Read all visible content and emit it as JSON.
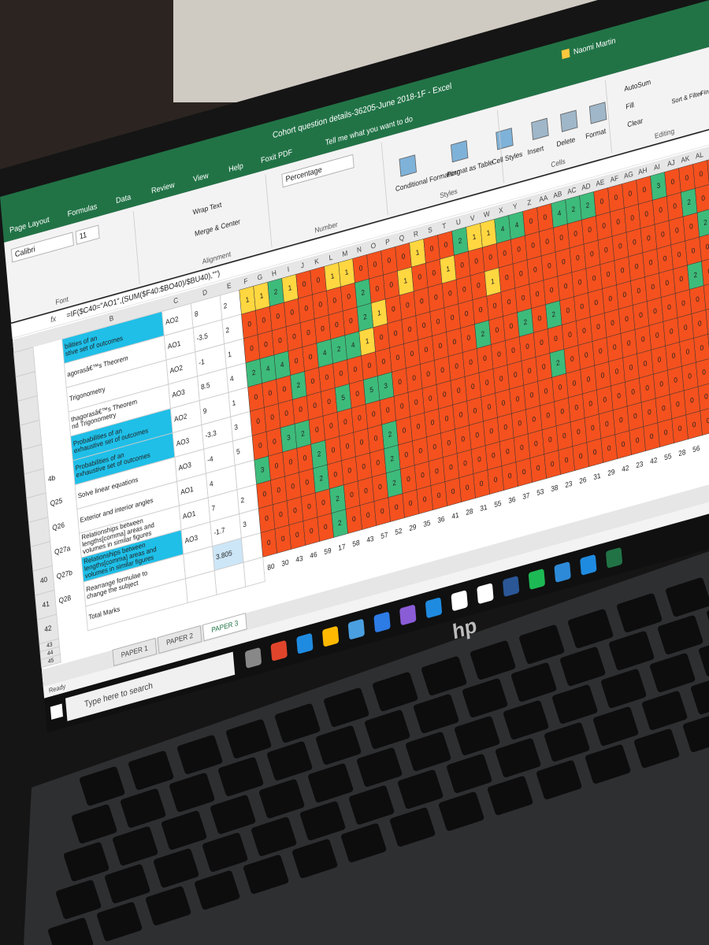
{
  "window": {
    "title": "Cohort question details-36205-June 2018-1F  -  Excel",
    "user": "Naomi Martin"
  },
  "tabs": [
    "Page Layout",
    "Formulas",
    "Data",
    "Review",
    "View",
    "Help",
    "Foxit PDF"
  ],
  "tell_me": "Tell me what you want to do",
  "ribbon": {
    "font": "Calibri",
    "size": "11",
    "number_format": "Percentage",
    "commands": [
      "Wrap Text",
      "Merge & Center",
      "Conditional Formatting",
      "Format as Table",
      "Cell Styles",
      "Insert",
      "Delete",
      "Format",
      "AutoSum",
      "Fill",
      "Clear",
      "Sort & Filter",
      "Find & Select"
    ],
    "groups": [
      "Font",
      "Alignment",
      "Number",
      "Styles",
      "Cells",
      "Editing"
    ]
  },
  "formula": {
    "fx": "fx",
    "text": "=IF($C40=\"AO1\",(SUM($F40:$BO40)/$BU40),\"\")"
  },
  "columns": [
    "B",
    "C",
    "D",
    "E",
    "F",
    "G",
    "H",
    "I",
    "J",
    "K",
    "L",
    "M",
    "N",
    "O",
    "P",
    "Q",
    "R",
    "S",
    "T",
    "U",
    "V",
    "W",
    "X",
    "Y",
    "Z",
    "AA",
    "AB",
    "AC",
    "AD",
    "AE",
    "AF",
    "AG",
    "AH",
    "AI",
    "AJ",
    "AK",
    "AL",
    "AM"
  ],
  "cell_colors": {
    "zero": "#f4511e",
    "one": "#ffd740",
    "more": "#3dbb7a"
  },
  "rows": [
    {
      "desc": [
        "bilities of an",
        "stive set of outcomes"
      ],
      "highlight": true,
      "ao": "AO2",
      "d": 8,
      "e": 2,
      "cells": [
        1,
        1,
        2,
        1,
        0,
        0,
        1,
        1,
        0,
        0,
        0,
        0,
        1,
        0,
        0,
        2,
        1,
        1,
        4,
        4,
        0,
        0,
        4,
        2,
        2,
        0,
        0,
        0,
        0,
        3,
        0,
        0,
        0,
        0
      ]
    },
    {
      "desc": [
        "agorasâ€™s Theorem"
      ],
      "ao": "AO1",
      "d": -3.5,
      "e": 2,
      "cells": [
        0,
        0,
        0,
        0,
        0,
        0,
        0,
        0,
        2,
        0,
        0,
        1,
        0,
        0,
        1,
        0,
        0,
        0,
        0,
        0,
        0,
        0,
        0,
        0,
        0,
        0,
        0,
        0,
        0,
        0,
        0,
        2,
        0,
        0
      ]
    },
    {
      "desc": [
        "Trigonometry"
      ],
      "ao": "AO2",
      "d": -1,
      "e": 1,
      "cells": [
        0,
        0,
        0,
        0,
        0,
        0,
        0,
        0,
        2,
        1,
        0,
        0,
        0,
        0,
        0,
        0,
        0,
        1,
        0,
        0,
        0,
        0,
        0,
        0,
        0,
        0,
        0,
        0,
        0,
        0,
        0,
        0,
        2,
        0
      ]
    },
    {
      "desc": [
        "thagorasâ€™s Theorem",
        "nd Trigonometry"
      ],
      "ao": "AO3",
      "d": 8.5,
      "e": 4,
      "cells": [
        2,
        4,
        4,
        0,
        0,
        4,
        2,
        4,
        1,
        0,
        0,
        0,
        0,
        0,
        0,
        0,
        0,
        0,
        0,
        0,
        0,
        0,
        0,
        0,
        0,
        0,
        0,
        0,
        0,
        0,
        0,
        0,
        0,
        0
      ]
    },
    {
      "desc": [
        "Probabilities of an",
        "exhaustive set of outcomes"
      ],
      "highlight": true,
      "ao": "AO2",
      "d": 9,
      "e": 1,
      "cells": [
        0,
        0,
        0,
        2,
        0,
        0,
        0,
        0,
        0,
        0,
        0,
        0,
        0,
        0,
        0,
        0,
        2,
        0,
        0,
        2,
        0,
        2,
        0,
        0,
        0,
        0,
        0,
        0,
        0,
        0,
        0,
        2,
        0,
        1
      ]
    },
    {
      "q": "4b",
      "desc": [
        "Probabilities of an",
        "exhaustive set of outcomes"
      ],
      "highlight": true,
      "ao": "AO3",
      "d": -3.3,
      "e": 3,
      "cells": [
        0,
        0,
        0,
        0,
        0,
        0,
        5,
        0,
        5,
        3,
        0,
        0,
        0,
        0,
        0,
        0,
        0,
        0,
        0,
        0,
        0,
        0,
        0,
        0,
        0,
        0,
        0,
        0,
        0,
        0,
        0,
        0,
        0,
        0
      ]
    },
    {
      "q": "Q25",
      "desc": [
        "Solve linear equations"
      ],
      "ao": "AO3",
      "d": -4,
      "e": 5,
      "cells": [
        0,
        0,
        3,
        2,
        0,
        0,
        0,
        0,
        0,
        0,
        0,
        0,
        0,
        0,
        0,
        0,
        0,
        0,
        0,
        0,
        0,
        2,
        0,
        0,
        0,
        0,
        0,
        0,
        0,
        0,
        0,
        0,
        0,
        0
      ]
    },
    {
      "q": "Q26",
      "desc": [
        "Exterior and interior angles"
      ],
      "ao": "AO1",
      "d": 4,
      "cells": [
        3,
        0,
        0,
        0,
        2,
        0,
        0,
        0,
        0,
        2,
        0,
        0,
        0,
        0,
        0,
        0,
        0,
        0,
        0,
        0,
        0,
        0,
        0,
        0,
        0,
        0,
        0,
        0,
        0,
        0,
        0,
        0,
        0,
        0
      ]
    },
    {
      "q": "Q27a",
      "desc": [
        "Relationships between",
        "lengths[comma] areas and",
        "volumes in similar figures"
      ],
      "ao": "AO1",
      "d": 7,
      "e": 2,
      "cells": [
        0,
        0,
        0,
        0,
        2,
        0,
        0,
        0,
        0,
        2,
        0,
        0,
        0,
        0,
        0,
        0,
        0,
        0,
        0,
        0,
        0,
        0,
        0,
        0,
        0,
        0,
        0,
        0,
        0,
        0,
        0,
        0,
        0,
        0
      ]
    },
    {
      "row": "40",
      "q": "Q27b",
      "desc": [
        "Relationships between",
        "lengths[comma] areas and",
        "volumes in similar figures"
      ],
      "highlight": true,
      "ao": "AO3",
      "d": -1.7,
      "e": 3,
      "cells": [
        0,
        0,
        0,
        0,
        0,
        2,
        0,
        0,
        0,
        2,
        0,
        0,
        0,
        0,
        0,
        0,
        0,
        0,
        0,
        0,
        0,
        0,
        0,
        0,
        0,
        0,
        0,
        0,
        0,
        0,
        0,
        0,
        0,
        0
      ]
    },
    {
      "row": "41",
      "q": "Q28",
      "desc": [
        "Rearrange formulae to",
        "change the subject"
      ],
      "d": 3.805,
      "cells": [
        0,
        0,
        0,
        0,
        0,
        2,
        0,
        0,
        0,
        0,
        0,
        0,
        0,
        0,
        0,
        0,
        0,
        0,
        0,
        0,
        0,
        0,
        0,
        0,
        0,
        0,
        0,
        0,
        0,
        0,
        0,
        0,
        0,
        0
      ]
    },
    {
      "row": "42",
      "desc": [
        "Total Marks"
      ],
      "totals": [
        80,
        30,
        43,
        46,
        59,
        17,
        58,
        43,
        57,
        52,
        29,
        35,
        36,
        41,
        28,
        31,
        55,
        36,
        37,
        53,
        38,
        23,
        26,
        31,
        29,
        42,
        23,
        42,
        55,
        28,
        56
      ]
    }
  ],
  "blank_rows": [
    "43",
    "44",
    "45"
  ],
  "sheets": [
    "PAPER 1",
    "PAPER 2",
    "PAPER 3"
  ],
  "status": "Ready",
  "search": "Type here to search",
  "bezel_logo": "hp"
}
